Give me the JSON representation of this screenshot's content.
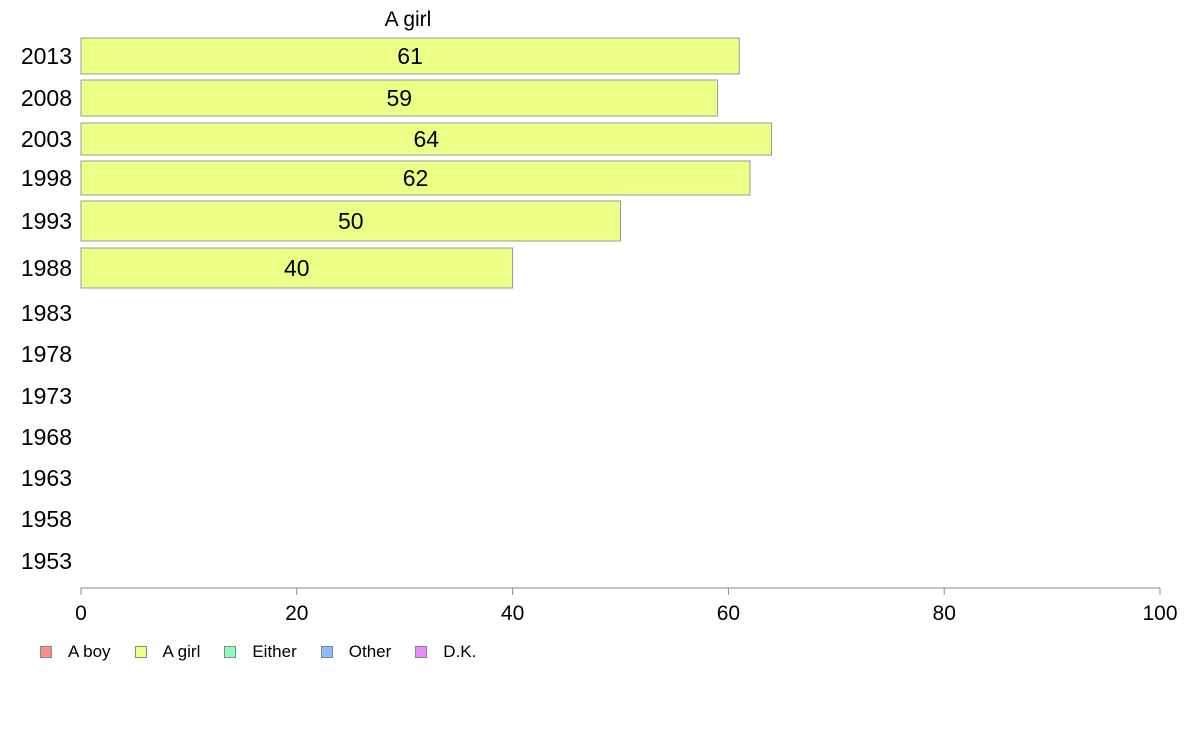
{
  "chart_data": {
    "type": "bar",
    "orientation": "horizontal",
    "title": "A girl",
    "categories": [
      "2013",
      "2008",
      "2003",
      "1998",
      "1993",
      "1988",
      "1983",
      "1978",
      "1973",
      "1968",
      "1963",
      "1958",
      "1953"
    ],
    "series": [
      {
        "name": "A girl",
        "values": [
          61,
          59,
          64,
          62,
          50,
          40,
          null,
          null,
          null,
          null,
          null,
          null,
          null
        ]
      }
    ],
    "data_labels": [
      "61",
      "59",
      "64",
      "62",
      "50",
      "40",
      "",
      "",
      "",
      "",
      "",
      "",
      ""
    ],
    "xlim": [
      0,
      100
    ],
    "xticks": [
      "0",
      "20",
      "40",
      "60",
      "80",
      "100"
    ],
    "grid": false,
    "legend_position": "bottom-left",
    "bar_color": "#eeff88",
    "legend": [
      {
        "label": "A boy",
        "color": "#ff8c8c"
      },
      {
        "label": "A girl",
        "color": "#eeff88"
      },
      {
        "label": "Either",
        "color": "#88ffbb"
      },
      {
        "label": "Other",
        "color": "#88bbff"
      },
      {
        "label": "D.K.",
        "color": "#ee88ff"
      }
    ]
  }
}
